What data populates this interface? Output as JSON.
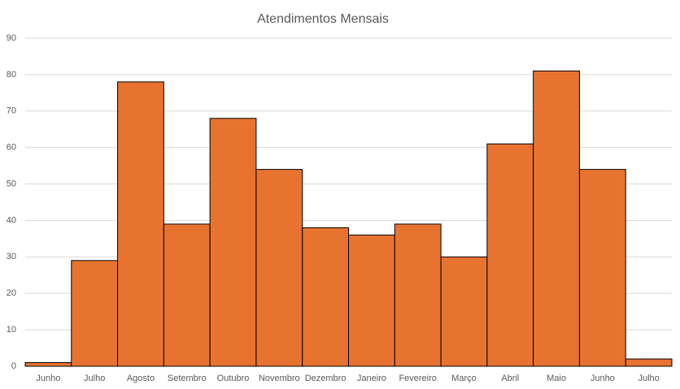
{
  "chart_data": {
    "type": "bar",
    "title": "Atendimentos Mensais",
    "categories": [
      "Junho",
      "Julho",
      "Agosto",
      "Setembro",
      "Outubro",
      "Novembro",
      "Dezembro",
      "Janeiro",
      "Fevereiro",
      "Março",
      "Abril",
      "Maio",
      "Junho",
      "Julho"
    ],
    "values": [
      1,
      29,
      78,
      39,
      68,
      54,
      38,
      36,
      39,
      30,
      61,
      81,
      54,
      2
    ],
    "color": "#e87331",
    "ylim": [
      0,
      90
    ],
    "yticks": [
      0,
      10,
      20,
      30,
      40,
      50,
      60,
      70,
      80,
      90
    ],
    "grid": true
  }
}
